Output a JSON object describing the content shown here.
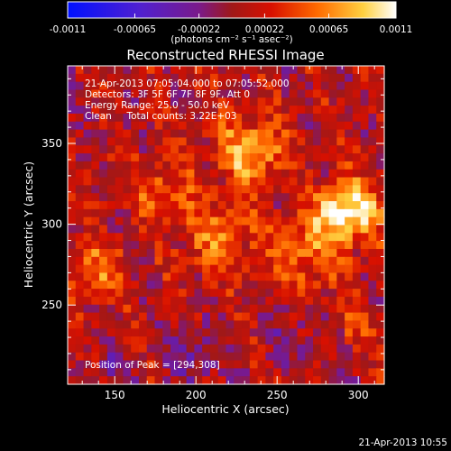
{
  "chart_data": {
    "type": "heatmap",
    "title": "Reconstructed RHESSI Image",
    "xlabel": "Heliocentric X (arcsec)",
    "ylabel": "Heliocentric Y (arcsec)",
    "xlim": [
      121,
      316
    ],
    "ylim": [
      201,
      398
    ],
    "xticks": [
      150,
      200,
      250,
      300
    ],
    "yticks": [
      250,
      300,
      350
    ],
    "colorbar": {
      "range": [
        -0.0011,
        0.0011
      ],
      "tick_values": [
        -0.0011,
        -0.00065,
        -0.00022,
        0.00022,
        0.00065,
        0.0011
      ],
      "tick_labels": [
        "-0.0011",
        "-0.00065",
        "-0.00022",
        "0.00022",
        "0.00065",
        "0.0011"
      ],
      "unit_label": "(photons cm⁻² s⁻¹ asec⁻²)"
    },
    "sources": [
      {
        "x": 294,
        "y": 308,
        "sigma": 13,
        "amp": 0.0011
      },
      {
        "x": 233,
        "y": 344,
        "sigma": 14,
        "amp": 0.00078
      },
      {
        "x": 213,
        "y": 292,
        "sigma": 15,
        "amp": 0.00052
      },
      {
        "x": 268,
        "y": 282,
        "sigma": 16,
        "amp": 0.0005
      },
      {
        "x": 140,
        "y": 272,
        "sigma": 12,
        "amp": 0.00052
      },
      {
        "x": 178,
        "y": 322,
        "sigma": 13,
        "amp": 0.00042
      },
      {
        "x": 300,
        "y": 240,
        "sigma": 10,
        "amp": 0.0003
      },
      {
        "x": 200,
        "y": 218,
        "sigma": 12,
        "amp": -0.00038
      },
      {
        "x": 150,
        "y": 212,
        "sigma": 9,
        "amp": -0.00032
      },
      {
        "x": 258,
        "y": 232,
        "sigma": 13,
        "amp": -0.00022
      }
    ],
    "annotations": [
      "21-Apr-2013 07:05:04.000 to 07:05:52.000",
      "Detectors: 3F 5F 6F 7F 8F 9F, Att 0",
      "Energy Range: 25.0 - 50.0 keV",
      "Clean     Total counts: 3.22E+03"
    ],
    "peak_label": "Position of Peak = [294,308]",
    "grid": false
  },
  "footer": {
    "timestamp": "21-Apr-2013 10:55"
  },
  "colors": {
    "background": "#000000",
    "text": "#ffffff"
  }
}
